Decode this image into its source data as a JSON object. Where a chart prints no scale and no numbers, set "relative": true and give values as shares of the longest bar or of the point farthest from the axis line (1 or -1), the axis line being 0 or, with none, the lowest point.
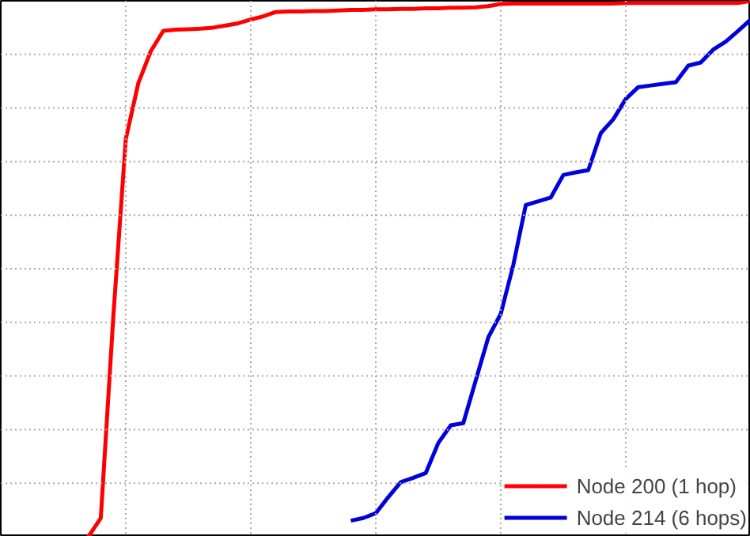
{
  "chart_data": {
    "type": "line",
    "relative": true,
    "categories": [
      null,
      null,
      null,
      null,
      null,
      null,
      null,
      null,
      null,
      null,
      null,
      null,
      null,
      null,
      null,
      null,
      null,
      null,
      null,
      null,
      null,
      null,
      null,
      null,
      null,
      null,
      null,
      null,
      null,
      null,
      null,
      null,
      null,
      null,
      null,
      null,
      null,
      null,
      null,
      null,
      null,
      null,
      null,
      null,
      null,
      null,
      null,
      null,
      null,
      null,
      null,
      null,
      null,
      null,
      null,
      null,
      null,
      null,
      null,
      null,
      null
    ],
    "grid": true,
    "legend": "bottom right",
    "line_style": "solid",
    "marker": "none",
    "series": [
      {
        "name": "Node 200 (1 hop)",
        "color": "#ff0000",
        "values": [
          null,
          null,
          null,
          null,
          null,
          null,
          null,
          0.0,
          0.035,
          0.41,
          0.742,
          0.846,
          0.906,
          0.944,
          0.946,
          0.947,
          0.948,
          0.95,
          0.954,
          0.958,
          0.965,
          0.971,
          0.979,
          0.98,
          0.98,
          0.981,
          0.981,
          0.982,
          0.983,
          0.983,
          0.984,
          0.984,
          0.985,
          0.985,
          0.986,
          0.986,
          0.987,
          0.987,
          0.988,
          0.99,
          0.994,
          0.995,
          0.995,
          0.995,
          0.995,
          0.995,
          0.995,
          0.995,
          0.995,
          0.995,
          0.996,
          0.996,
          0.996,
          0.996,
          0.996,
          0.996,
          0.996,
          0.996,
          0.996,
          0.996,
          1.0
        ]
      },
      {
        "name": "Node 214 (6 hops)",
        "color": "#0000dd",
        "values": [
          null,
          null,
          null,
          null,
          null,
          null,
          null,
          null,
          null,
          null,
          null,
          null,
          null,
          null,
          null,
          null,
          null,
          null,
          null,
          null,
          null,
          null,
          null,
          null,
          null,
          null,
          null,
          null,
          0.03,
          0.035,
          0.044,
          0.074,
          0.102,
          0.11,
          0.119,
          0.175,
          0.208,
          0.212,
          0.292,
          0.372,
          0.416,
          0.507,
          0.619,
          0.626,
          0.633,
          0.675,
          0.68,
          0.684,
          0.753,
          0.779,
          0.817,
          0.839,
          0.842,
          0.845,
          0.848,
          0.879,
          0.885,
          0.909,
          0.924,
          0.944,
          0.965
        ]
      }
    ]
  }
}
